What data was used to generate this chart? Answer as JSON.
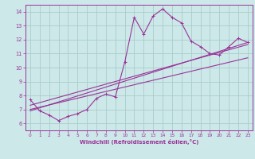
{
  "xlabel": "Windchill (Refroidissement éolien,°C)",
  "background_color": "#cde8e8",
  "grid_color": "#aacccc",
  "line_color": "#993399",
  "xlim": [
    -0.5,
    23.5
  ],
  "ylim": [
    5.5,
    14.5
  ],
  "xticks": [
    0,
    1,
    2,
    3,
    4,
    5,
    6,
    7,
    8,
    9,
    10,
    11,
    12,
    13,
    14,
    15,
    16,
    17,
    18,
    19,
    20,
    21,
    22,
    23
  ],
  "yticks": [
    6,
    7,
    8,
    9,
    10,
    11,
    12,
    13,
    14
  ],
  "series": [
    [
      0,
      7.7
    ],
    [
      1,
      6.9
    ],
    [
      2,
      6.6
    ],
    [
      3,
      6.2
    ],
    [
      4,
      6.5
    ],
    [
      5,
      6.7
    ],
    [
      6,
      7.0
    ],
    [
      7,
      7.8
    ],
    [
      8,
      8.1
    ],
    [
      9,
      7.9
    ],
    [
      10,
      10.4
    ],
    [
      11,
      13.6
    ],
    [
      12,
      12.4
    ],
    [
      13,
      13.7
    ],
    [
      14,
      14.2
    ],
    [
      15,
      13.6
    ],
    [
      16,
      13.2
    ],
    [
      17,
      11.9
    ],
    [
      18,
      11.5
    ],
    [
      19,
      11.0
    ],
    [
      20,
      10.9
    ],
    [
      21,
      11.5
    ],
    [
      22,
      12.1
    ],
    [
      23,
      11.8
    ]
  ],
  "line2": [
    [
      0,
      6.9
    ],
    [
      23,
      11.8
    ]
  ],
  "line3": [
    [
      0,
      7.3
    ],
    [
      23,
      11.65
    ]
  ],
  "line4": [
    [
      0,
      7.0
    ],
    [
      23,
      10.7
    ]
  ]
}
